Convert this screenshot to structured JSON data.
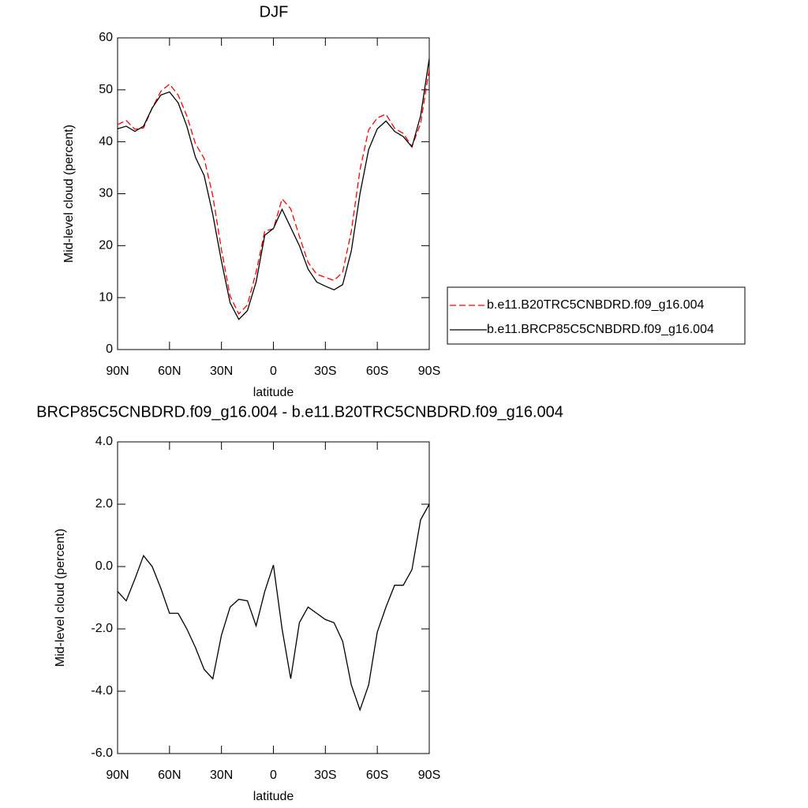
{
  "chart_data": [
    {
      "type": "line",
      "title": "DJF",
      "xlabel": "latitude",
      "ylabel": "Mid-level cloud (percent)",
      "x": [
        90,
        85,
        80,
        75,
        70,
        65,
        60,
        55,
        50,
        45,
        40,
        35,
        30,
        25,
        20,
        15,
        10,
        5,
        0,
        -5,
        -10,
        -15,
        -20,
        -25,
        -30,
        -35,
        -40,
        -45,
        -50,
        -55,
        -60,
        -65,
        -70,
        -75,
        -80,
        -85,
        -90
      ],
      "xlim": [
        90,
        -90
      ],
      "xticks": [
        {
          "value": 90,
          "label": "90N"
        },
        {
          "value": 60,
          "label": "60N"
        },
        {
          "value": 30,
          "label": "30N"
        },
        0,
        {
          "value": -30,
          "label": "30S"
        },
        {
          "value": -60,
          "label": "60S"
        },
        {
          "value": -90,
          "label": "90S"
        }
      ],
      "ylim": [
        0,
        60
      ],
      "yticks": [
        0,
        10,
        20,
        30,
        40,
        50,
        60
      ],
      "legend": "outside-right",
      "series": [
        {
          "name": "b.e11.B20TRC5CNBDRD.f09_g16.004",
          "color": "#ff0000",
          "line_style": "dashed",
          "values": [
            43.3,
            44.1,
            42.4,
            42.65,
            46.5,
            49.7,
            51.1,
            49,
            45,
            39.6,
            36.8,
            29.6,
            19.2,
            10.3,
            6.85,
            8.6,
            14.9,
            22.8,
            23.25,
            29,
            27.1,
            21.8,
            16.8,
            14.5,
            13.9,
            13.3,
            14.9,
            22.8,
            34.6,
            42.3,
            44.6,
            45.3,
            42.6,
            41.6,
            39.1,
            43.5,
            54
          ]
        },
        {
          "name": "b.e11.BRCP85C5CNBDRD.f09_g16.004",
          "color": "#000000",
          "line_style": "solid",
          "values": [
            42.5,
            43,
            42,
            43,
            46.5,
            49,
            49.6,
            47.5,
            43,
            37,
            33.5,
            26,
            17,
            9,
            5.8,
            7.5,
            13,
            22,
            23.3,
            27,
            23.5,
            20,
            15.5,
            13,
            12.2,
            11.5,
            12.5,
            19,
            30,
            38.5,
            42.5,
            44,
            42,
            41,
            39,
            45,
            56
          ]
        }
      ]
    },
    {
      "type": "line",
      "title": "BRCP85C5CNBDRD.f09_g16.004 - b.e11.B20TRC5CNBDRD.f09_g16.004",
      "xlabel": "latitude",
      "ylabel": "Mid-level cloud (percent)",
      "x": [
        90,
        85,
        80,
        75,
        70,
        65,
        60,
        55,
        50,
        45,
        40,
        35,
        30,
        25,
        20,
        15,
        10,
        5,
        0,
        -5,
        -10,
        -15,
        -20,
        -25,
        -30,
        -35,
        -40,
        -45,
        -50,
        -55,
        -60,
        -65,
        -70,
        -75,
        -80,
        -85,
        -90
      ],
      "xlim": [
        90,
        -90
      ],
      "xticks": [
        {
          "value": 90,
          "label": "90N"
        },
        {
          "value": 60,
          "label": "60N"
        },
        {
          "value": 30,
          "label": "30N"
        },
        0,
        {
          "value": -30,
          "label": "30S"
        },
        {
          "value": -60,
          "label": "60S"
        },
        {
          "value": -90,
          "label": "90S"
        }
      ],
      "ylim": [
        -6,
        4
      ],
      "yticks": [
        {
          "value": 4,
          "label": "4.0"
        },
        {
          "value": 2,
          "label": "2.0"
        },
        {
          "value": 0,
          "label": "0.0"
        },
        {
          "value": -2,
          "label": "-2.0"
        },
        {
          "value": -4,
          "label": "-4.0"
        },
        {
          "value": -6,
          "label": "-6.0"
        }
      ],
      "series": [
        {
          "color": "#000000",
          "line_style": "solid",
          "values": [
            -0.8,
            -1.1,
            -0.4,
            0.35,
            0,
            -0.7,
            -1.5,
            -1.5,
            -2,
            -2.6,
            -3.3,
            -3.6,
            -2.2,
            -1.3,
            -1.05,
            -1.1,
            -1.9,
            -0.8,
            0.05,
            -2,
            -3.6,
            -1.8,
            -1.3,
            -1.5,
            -1.7,
            -1.8,
            -2.4,
            -3.8,
            -4.6,
            -3.8,
            -2.1,
            -1.3,
            -0.6,
            -0.6,
            -0.1,
            1.5,
            2
          ]
        }
      ]
    }
  ]
}
